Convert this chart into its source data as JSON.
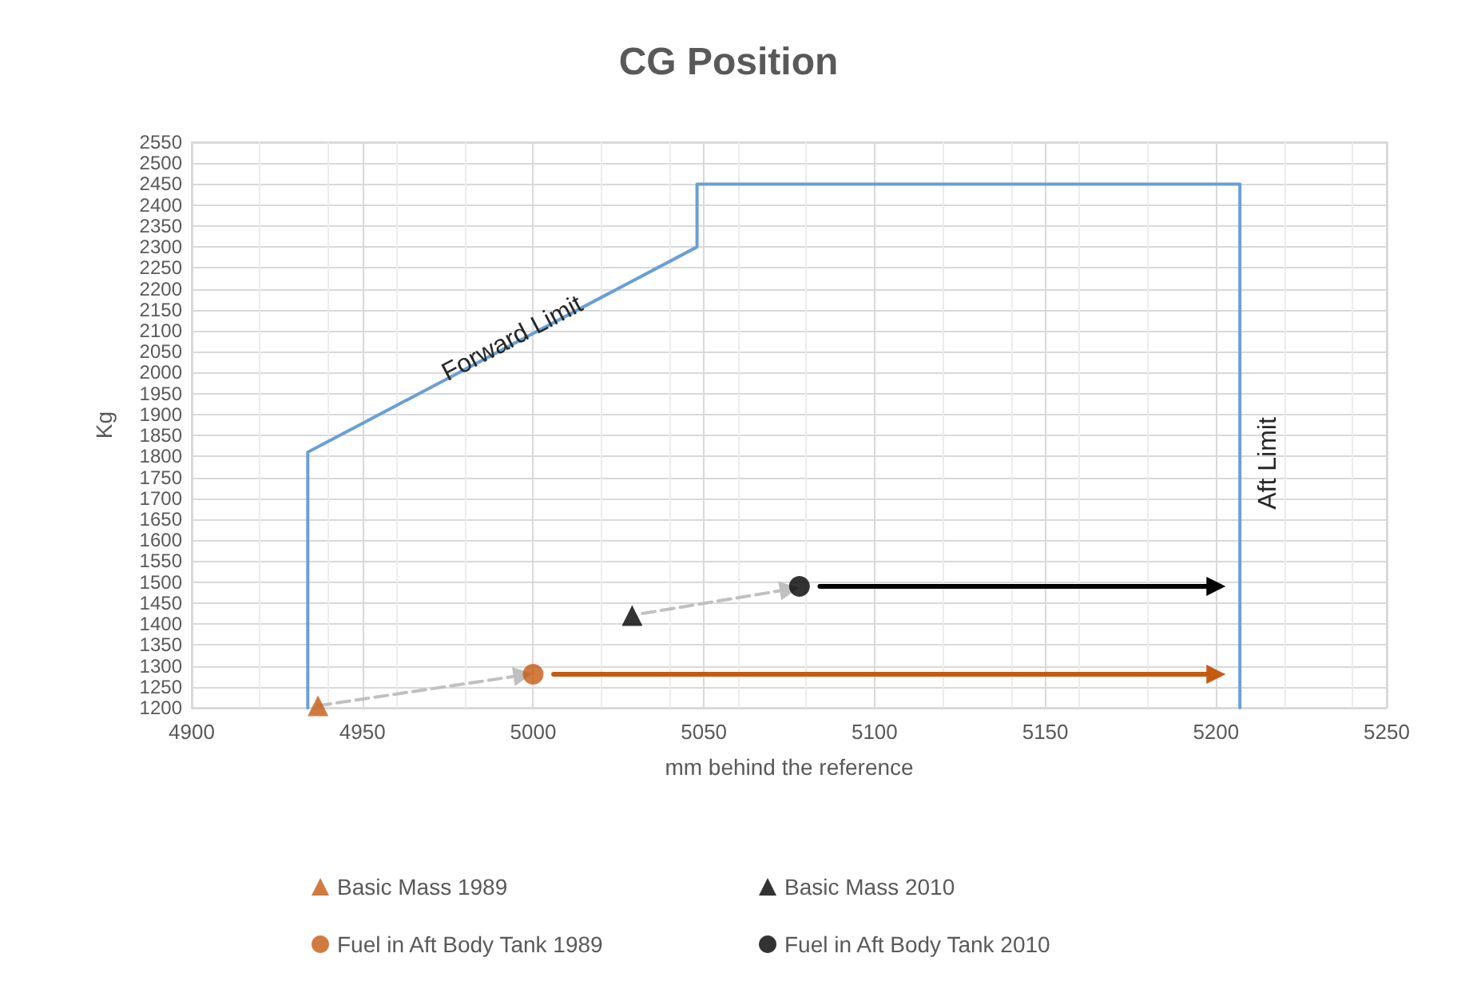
{
  "chart_data": {
    "type": "scatter",
    "title": "CG Position",
    "xlabel": "mm behind the reference",
    "ylabel": "Kg",
    "xlim": [
      4900,
      5250
    ],
    "xticks": [
      4900,
      4950,
      5000,
      5050,
      5100,
      5150,
      5200,
      5250
    ],
    "ylim": [
      1200,
      2550
    ],
    "yticks": [
      1200,
      1250,
      1300,
      1350,
      1400,
      1450,
      1500,
      1550,
      1600,
      1650,
      1700,
      1750,
      1800,
      1850,
      1900,
      1950,
      2000,
      2050,
      2100,
      2150,
      2200,
      2250,
      2300,
      2350,
      2400,
      2450,
      2500,
      2550
    ],
    "grid": true,
    "legend": "bottom",
    "series": [
      {
        "type": "line",
        "color": "#6a9fd4",
        "marker": "none",
        "x": [
          4934,
          4934,
          5048,
          5048,
          5207,
          5207
        ],
        "values": [
          1200,
          1810,
          2300,
          2450,
          2450,
          1200
        ]
      },
      {
        "type": "line",
        "color": "#c0c0c0",
        "marker": "triangle",
        "line_style": "dashed",
        "x": [
          4937,
          4997
        ],
        "values": [
          1205,
          1278
        ]
      },
      {
        "type": "line",
        "color": "#c0c0c0",
        "marker": "triangle",
        "line_style": "dashed",
        "x": [
          5032,
          5075
        ],
        "values": [
          1425,
          1483
        ]
      },
      {
        "type": "line",
        "color": "#c55a11",
        "marker": "triangle",
        "line_style": "solid",
        "x": [
          5006,
          5200
        ],
        "values": [
          1280,
          1280
        ]
      },
      {
        "type": "line",
        "color": "#000000",
        "marker": "triangle",
        "line_style": "solid",
        "x": [
          5084,
          5200
        ],
        "values": [
          1490,
          1490
        ]
      },
      {
        "name": "Basic Mass 1989",
        "color": "#c55a11",
        "marker": "triangle",
        "x": [
          4937
        ],
        "values": [
          1205
        ]
      },
      {
        "name": "Basic Mass 2010",
        "color": "#000000",
        "marker": "triangle",
        "x": [
          5029
        ],
        "values": [
          1420
        ]
      },
      {
        "name": "Fuel in Aft Body Tank 1989",
        "color": "#c55a11",
        "marker": "circle",
        "x": [
          5000
        ],
        "values": [
          1280
        ]
      },
      {
        "name": "Fuel in Aft Body Tank 2010",
        "color": "#000000",
        "marker": "circle",
        "x": [
          5078
        ],
        "values": [
          1490
        ]
      }
    ],
    "annotations": [
      {
        "text": "Forward Limit",
        "x": 4994,
        "y": 2080
      },
      "Aft Limit"
    ]
  }
}
